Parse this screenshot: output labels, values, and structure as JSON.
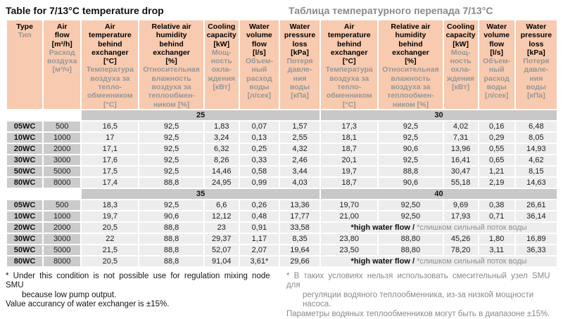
{
  "title_en": "Table for 7/13°C temperature drop",
  "title_ru": "Таблица температурного перепада 7/13°C",
  "colors": {
    "header_bg": "#f8caaf",
    "band_bg": "#c8c8c8",
    "label_bg": "#cbcbcb",
    "cell_bg": "#ededed",
    "gray_text": "#979797"
  },
  "header": {
    "columns": [
      {
        "en": "Type",
        "ru": "Тип"
      },
      {
        "en": "Air\nflow\n[m³/h]",
        "ru": "Расход\nвоздуха\n[м³/ч]"
      },
      {
        "en": "Air\ntemperature\nbehind\nexchanger\n[°C]",
        "ru": "Температура\nвоздуха за\nтепло-\nобменником\n[°C]"
      },
      {
        "en": "Relative air\nhumidity\nbehind\nexchanger\n[%]",
        "ru": "Относительная\nвлажность\nвоздуха за\nтеплообмен-\nником [%]"
      },
      {
        "en": "Cooling\ncapacity\n[kW]",
        "ru": "Мощ-\nность\nохла-\nждения\n[кВт]"
      },
      {
        "en": "Water\nvolume\nflow\n[l/s]",
        "ru": "Объем-\nный\nрасход\nводы\n[л/сек]"
      },
      {
        "en": "Water\npressure\nloss\n[kPa]",
        "ru": "Потеря\nдавле-\nния\nводы\n[кПа]"
      },
      {
        "en": "Air\ntemperature\nbehind\nexchanger\n[°C]",
        "ru": "Температура\nвоздуха за\nтепло-\nобменником\n[°C]"
      },
      {
        "en": "Relative air\nhumidity\nbehind\nexchanger\n[%]",
        "ru": "Относительная\nвлажность\nвоздуха за\nтеплообмен-\nником [%]"
      },
      {
        "en": "Cooling\ncapacity\n[kW]",
        "ru": "Мощ-\nность\nохла-\nждения\n[кВт]"
      },
      {
        "en": "Water\nvolume\nflow\n[l/s]",
        "ru": "Объем-\nный\nрасход\nводы\n[л/сек]"
      },
      {
        "en": "Water\npressure\nloss\n[kPa]",
        "ru": "Потеря\nдавле-\nния\nводы\n[кПа]"
      }
    ]
  },
  "merged_note": {
    "en": "*high water flow /",
    "ru": "*слишком сильный поток воды"
  },
  "sections": [
    {
      "band_left": "25",
      "band_right": "30",
      "rows": [
        {
          "type": "05WC",
          "flow": "500",
          "left": [
            "16,5",
            "92,5",
            "1,83",
            "0,07",
            "1,57"
          ],
          "right": [
            "17,3",
            "92,5",
            "4,02",
            "0,16",
            "6,48"
          ]
        },
        {
          "type": "10WC",
          "flow": "1000",
          "left": [
            "17",
            "92,5",
            "3,24",
            "0,13",
            "2,55"
          ],
          "right": [
            "18,1",
            "92,5",
            "7,31",
            "0,29",
            "8,05"
          ]
        },
        {
          "type": "20WC",
          "flow": "2000",
          "left": [
            "17,1",
            "92,5",
            "6,32",
            "0,25",
            "4,32"
          ],
          "right": [
            "18,7",
            "90,6",
            "13,96",
            "0,55",
            "14,93"
          ]
        },
        {
          "type": "30WC",
          "flow": "3000",
          "left": [
            "17,6",
            "92,5",
            "8,26",
            "0,33",
            "2,46"
          ],
          "right": [
            "20,1",
            "92,5",
            "16,41",
            "0,65",
            "4,62"
          ]
        },
        {
          "type": "50WC",
          "flow": "5000",
          "left": [
            "17,5",
            "92,5",
            "14,46",
            "0,58",
            "3,44"
          ],
          "right": [
            "19,7",
            "88,8",
            "30,47",
            "1,21",
            "8,15"
          ]
        },
        {
          "type": "80WC",
          "flow": "8000",
          "left": [
            "17,4",
            "88,8",
            "24,95",
            "0,99",
            "4,03"
          ],
          "right": [
            "18,7",
            "90,6",
            "55,18",
            "2,19",
            "14,63"
          ]
        }
      ]
    },
    {
      "band_left": "35",
      "band_right": "40",
      "rows": [
        {
          "type": "05WC",
          "flow": "500",
          "left": [
            "18,3",
            "92,5",
            "6,6",
            "0,26",
            "13,36"
          ],
          "right": [
            "19,70",
            "92,50",
            "9,69",
            "0,38",
            "26,61"
          ]
        },
        {
          "type": "10WC",
          "flow": "1000",
          "left": [
            "19,7",
            "90,6",
            "12,12",
            "0,48",
            "17,77"
          ],
          "right": [
            "21,00",
            "92,50",
            "17,93",
            "0,71",
            "36,14"
          ]
        },
        {
          "type": "20WC",
          "flow": "2000",
          "left": [
            "20,5",
            "88,8",
            "23",
            "0,91",
            "33,58"
          ],
          "right": null
        },
        {
          "type": "30WC",
          "flow": "3000",
          "left": [
            "22",
            "88,8",
            "29,37",
            "1,17",
            "8,35"
          ],
          "right": [
            "23,80",
            "88,80",
            "45,26",
            "1,80",
            "16,89"
          ]
        },
        {
          "type": "50WC",
          "flow": "5000",
          "left": [
            "21,5",
            "88,8",
            "52,07",
            "2,07",
            "19,64"
          ],
          "right": [
            "23,50",
            "88,80",
            "78,20",
            "3,11",
            "36,33"
          ]
        },
        {
          "type": "80WC",
          "flow": "8000",
          "left": [
            "20,5",
            "88,8",
            "91,04",
            "3,61*",
            "29,66"
          ],
          "right": null
        }
      ]
    }
  ],
  "footnotes": {
    "en": {
      "line1": "* Under this condition is not possible use for regulation mixing node SMU",
      "line2": "because low pump output.",
      "line3": "Value accurancy of water exchanger is ±15%."
    },
    "ru": {
      "line1": "* В таких условиях нельзя использовать смесительный узел SMU для",
      "line2": "регуляции водяного теплообменника, из-за низкой мощности насоса.",
      "line3": "Параметры водяных теплообменников могут быть в диапазоне ±15%."
    }
  }
}
